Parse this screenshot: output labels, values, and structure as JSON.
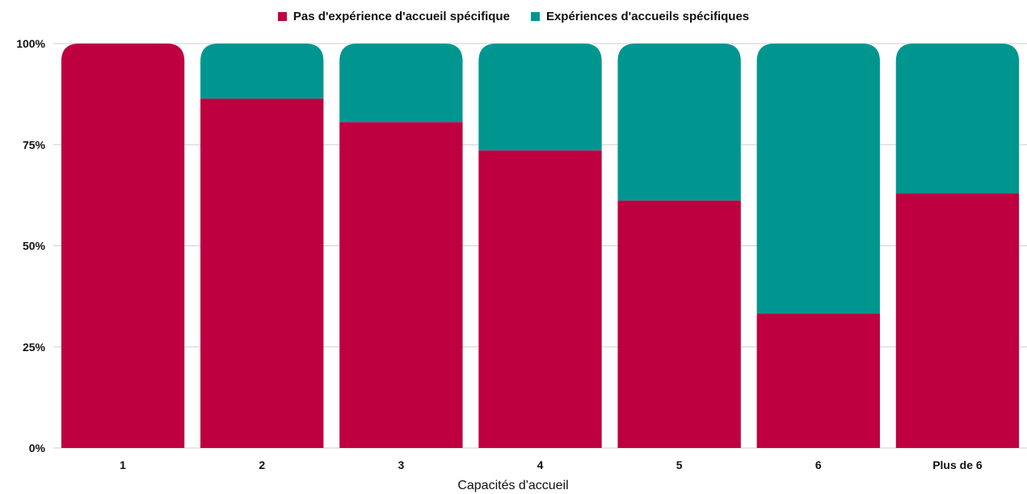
{
  "chart_data": {
    "type": "bar",
    "stacked": true,
    "categories": [
      "1",
      "2",
      "3",
      "4",
      "5",
      "6",
      "Plus de 6"
    ],
    "series": [
      {
        "name": "Pas d'expérience d'accueil spécifique",
        "color": "#BE0040",
        "values": [
          100,
          86.4,
          80.6,
          73.6,
          61.2,
          33.3,
          63.0
        ]
      },
      {
        "name": "Expériences d'accueils spécifiques",
        "color": "#009690",
        "values": [
          0,
          13.6,
          19.4,
          26.4,
          38.8,
          66.7,
          37.0
        ]
      }
    ],
    "y_ticks": [
      "0%",
      "25%",
      "50%",
      "75%",
      "100%"
    ],
    "ylim": [
      0,
      100
    ],
    "xlabel": "Capacités d'accueil",
    "ylabel": "",
    "legend_position": "top-center",
    "grid": true
  }
}
